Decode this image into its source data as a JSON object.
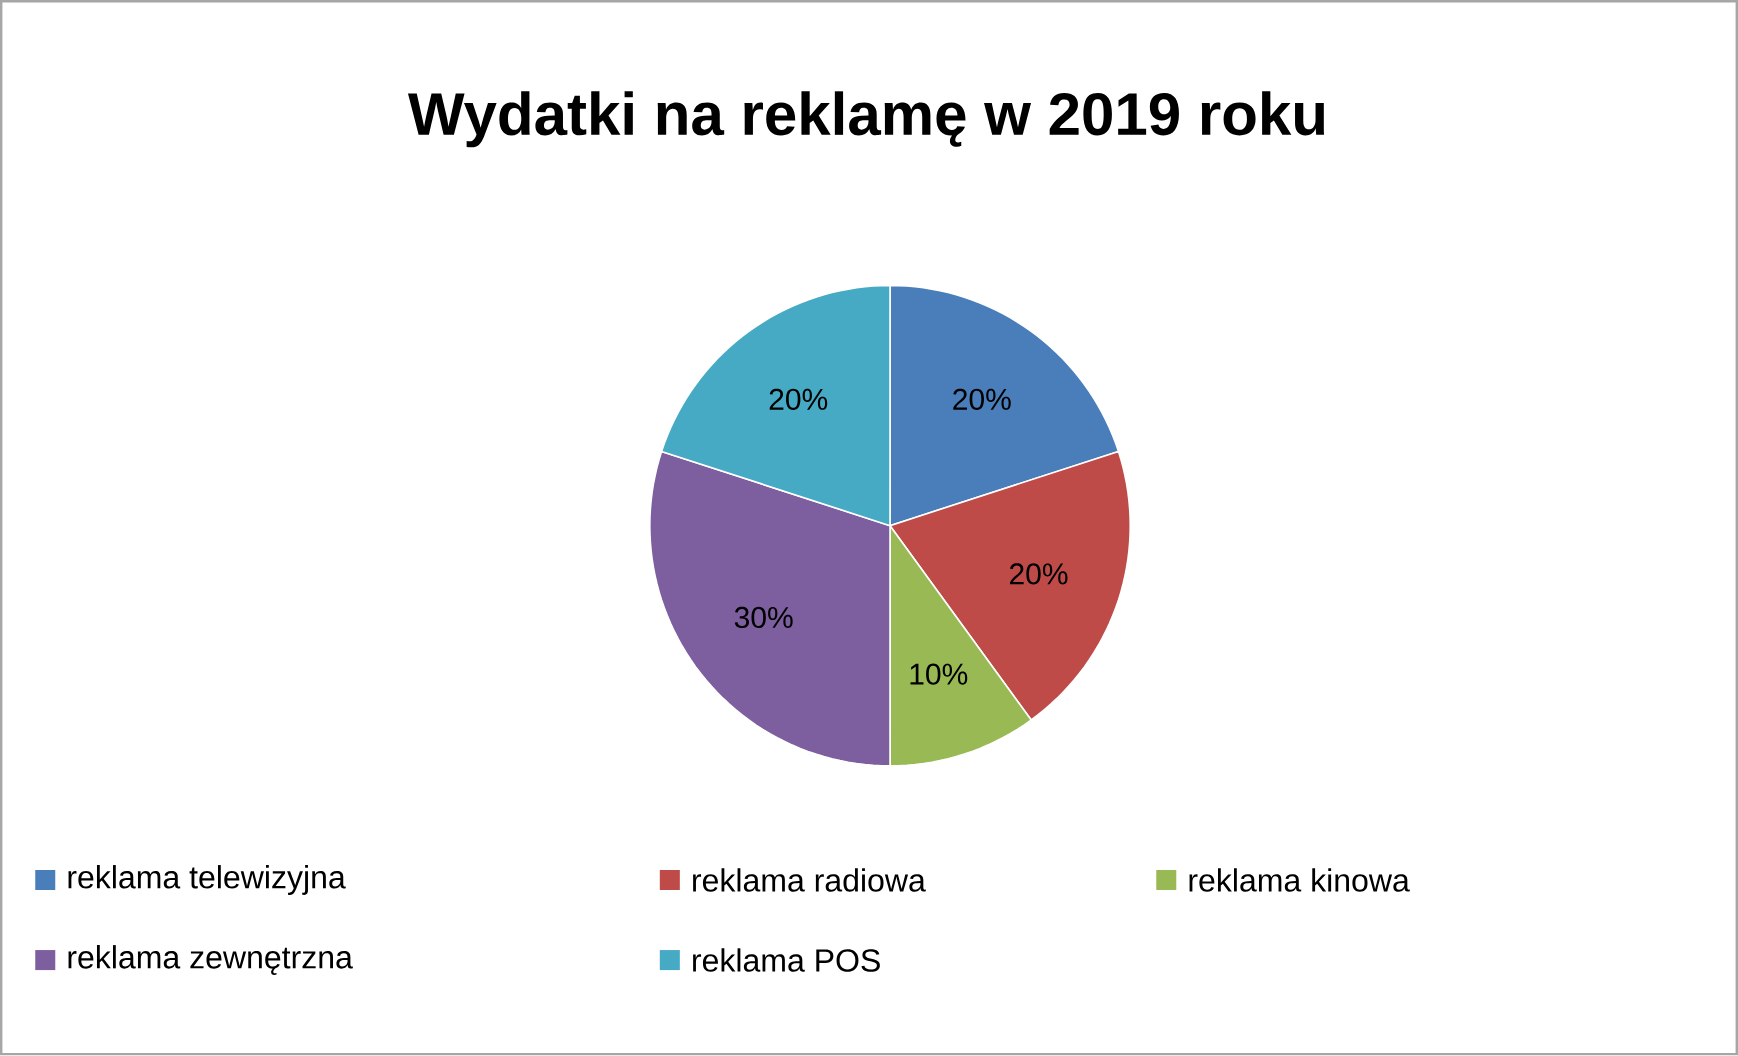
{
  "chart_data": {
    "type": "pie",
    "title": "Wydatki na reklamę w 2019 roku",
    "categories": [
      "reklama telewizyjna",
      "reklama radiowa",
      "reklama kinowa",
      "reklama zewnętrzna",
      "reklama POS"
    ],
    "values": [
      20,
      20,
      10,
      30,
      20
    ],
    "value_labels": [
      "20%",
      "20%",
      "10%",
      "30%",
      "20%"
    ],
    "colors": [
      "#4a7ebb",
      "#be4b48",
      "#98b954",
      "#7d5fa0",
      "#46aac5"
    ],
    "legend": "bottom"
  }
}
